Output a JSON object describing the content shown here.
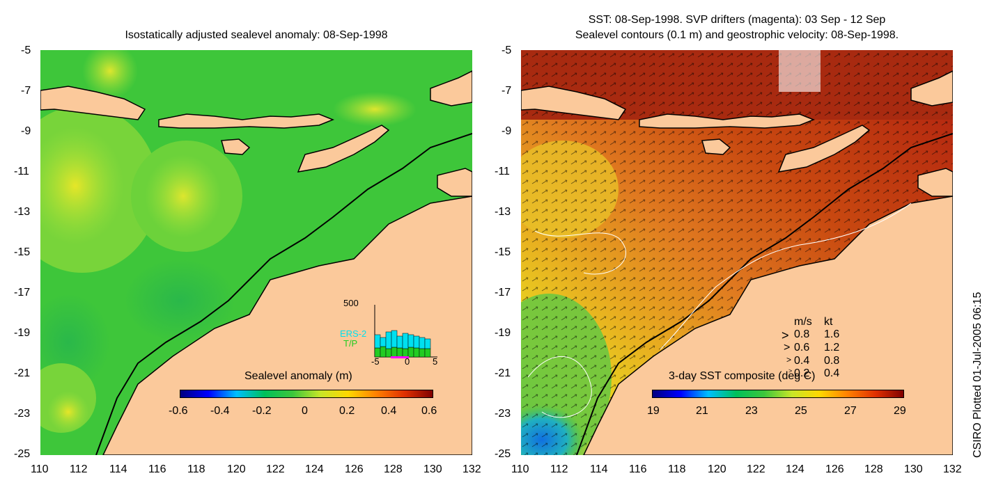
{
  "left_panel": {
    "title": "Isostatically adjusted sealevel anomaly: 08-Sep-1998",
    "colorbar": {
      "label": "Sealevel anomaly (m)",
      "ticks": [
        "-0.6",
        "-0.4",
        "-0.2",
        "0",
        "0.2",
        "0.4",
        "0.6"
      ]
    },
    "inset": {
      "ymax_label": "500",
      "legend": [
        "ERS-2",
        "T/P"
      ],
      "x_ticks": [
        "-5",
        "0",
        "5"
      ],
      "ers_color": "#00e0f0",
      "tp_color": "#22cc22"
    }
  },
  "right_panel": {
    "title_line1": "SST: 08-Sep-1998. SVP drifters (magenta): 03 Sep - 12 Sep",
    "title_line2": "Sealevel contours (0.1 m) and geostrophic velocity: 08-Sep-1998.",
    "colorbar": {
      "label": "3-day SST composite (deg C)",
      "ticks": [
        "19",
        "21",
        "23",
        "25",
        "27",
        "29"
      ]
    },
    "velocity_key": {
      "header_ms": "m/s",
      "header_kt": "kt",
      "rows": [
        {
          "ms": "0.8",
          "kt": "1.6"
        },
        {
          "ms": "0.6",
          "kt": "1.2"
        },
        {
          "ms": "0.4",
          "kt": "0.8"
        },
        {
          "ms": "0.2",
          "kt": "0.4"
        }
      ]
    }
  },
  "axes": {
    "lat_ticks": [
      "-5",
      "-7",
      "-9",
      "-11",
      "-13",
      "-15",
      "-17",
      "-19",
      "-21",
      "-23",
      "-25"
    ],
    "lon_ticks": [
      "110",
      "112",
      "114",
      "116",
      "118",
      "120",
      "122",
      "124",
      "126",
      "128",
      "130",
      "132"
    ]
  },
  "credit": "CSIRO Plotted 01-Jul-2005 06:15",
  "colors": {
    "land": "#fbc99b",
    "sla_ocean": "#3cc63c",
    "sst_warm": "#b84010",
    "sst_mid": "#e08020",
    "sst_cool": "#e8d020"
  }
}
